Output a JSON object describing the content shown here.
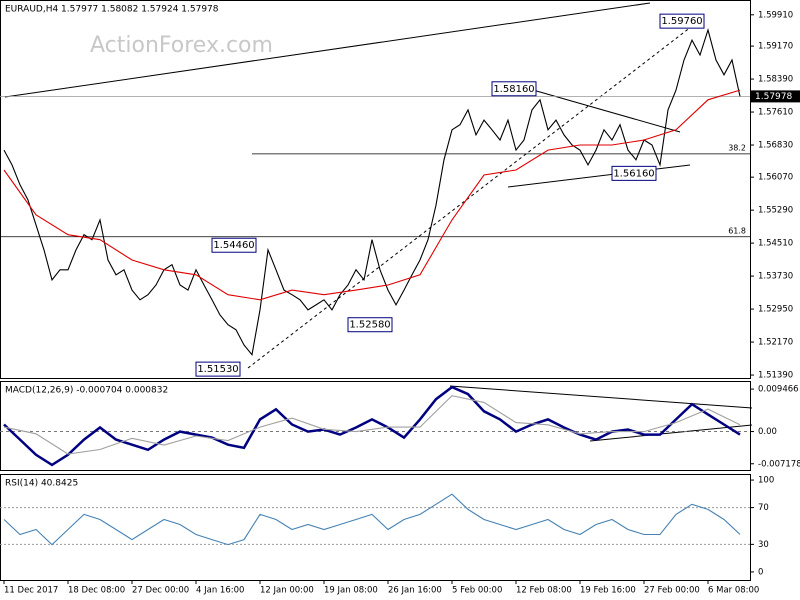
{
  "chart_data": [
    {
      "type": "line",
      "title": "EURAUD,H4  1.57977 1.58082 1.57924 1.57978",
      "watermark": "ActionForex.com",
      "xlim": [
        -0.5,
        93.25
      ],
      "ylim": [
        1.5132,
        1.6026
      ],
      "yticks": [
        {
          "value": 1.5991,
          "label": "1.59910"
        },
        {
          "value": 1.5917,
          "label": "1.59170"
        },
        {
          "value": 1.5839,
          "label": "1.58390"
        },
        {
          "value": 1.5761,
          "label": "1.57610"
        },
        {
          "value": 1.5683,
          "label": "1.56830"
        },
        {
          "value": 1.5607,
          "label": "1.56070"
        },
        {
          "value": 1.5529,
          "label": "1.55290"
        },
        {
          "value": 1.5451,
          "label": "1.54510"
        },
        {
          "value": 1.5373,
          "label": "1.53730"
        },
        {
          "value": 1.5295,
          "label": "1.52950"
        },
        {
          "value": 1.5217,
          "label": "1.52170"
        },
        {
          "value": 1.5139,
          "label": "1.51390"
        }
      ],
      "series": [
        {
          "color": "#000000",
          "x": [
            0,
            1,
            2,
            3,
            4,
            5,
            6,
            7,
            8,
            9,
            10,
            11,
            12,
            13,
            14,
            15,
            16,
            17,
            18,
            19,
            20,
            21,
            22,
            23,
            24,
            25,
            26,
            27,
            28,
            29,
            30,
            31,
            32,
            33,
            34,
            35,
            36,
            37,
            38,
            39,
            40,
            41,
            42,
            43,
            44,
            45,
            46,
            47,
            48,
            49,
            50,
            51,
            52,
            53,
            54,
            55,
            56,
            57,
            58,
            59,
            60,
            61,
            62,
            63,
            64,
            65,
            66,
            67,
            68,
            69,
            70,
            71,
            72,
            73,
            74,
            75,
            76,
            77,
            78,
            79,
            80,
            81,
            82,
            83,
            84,
            85,
            86,
            87,
            88,
            89,
            90,
            91,
            92
          ],
          "values": [
            1.5671,
            1.5636,
            1.5589,
            1.5553,
            1.5494,
            1.5435,
            1.5364,
            1.5388,
            1.5388,
            1.5435,
            1.5471,
            1.5459,
            1.5506,
            1.5411,
            1.5376,
            1.5388,
            1.534,
            1.5317,
            1.5329,
            1.5352,
            1.5388,
            1.54,
            1.5352,
            1.534,
            1.5388,
            1.5352,
            1.5317,
            1.5281,
            1.5258,
            1.5246,
            1.521,
            1.5187,
            1.5293,
            1.5435,
            1.5388,
            1.534,
            1.5329,
            1.5317,
            1.5293,
            1.5305,
            1.5317,
            1.5293,
            1.5329,
            1.5352,
            1.5388,
            1.5364,
            1.5459,
            1.5388,
            1.534,
            1.5305,
            1.534,
            1.5376,
            1.5411,
            1.5459,
            1.5541,
            1.5648,
            1.5719,
            1.5731,
            1.5766,
            1.5707,
            1.5742,
            1.5719,
            1.5695,
            1.5742,
            1.5671,
            1.5695,
            1.5766,
            1.579,
            1.5719,
            1.5742,
            1.5707,
            1.5683,
            1.5671,
            1.5636,
            1.5671,
            1.5719,
            1.5695,
            1.5731,
            1.5671,
            1.5648,
            1.5695,
            1.5683,
            1.5636,
            1.5766,
            1.5813,
            1.5884,
            1.5931,
            1.5896,
            1.5955,
            1.5884,
            1.5849,
            1.5884,
            1.5798
          ]
        },
        {
          "color": "#e00000",
          "x": [
            0,
            4,
            8,
            12,
            16,
            20,
            24,
            28,
            32,
            36,
            40,
            44,
            48,
            52,
            56,
            60,
            64,
            68,
            72,
            76,
            80,
            84,
            88,
            92
          ],
          "values": [
            1.5624,
            1.5518,
            1.5471,
            1.5459,
            1.5411,
            1.5388,
            1.5376,
            1.5329,
            1.5317,
            1.534,
            1.5329,
            1.534,
            1.5352,
            1.5376,
            1.5506,
            1.5612,
            1.5624,
            1.5671,
            1.5683,
            1.5683,
            1.5695,
            1.5719,
            1.579,
            1.5813
          ]
        }
      ],
      "annotations": [
        {
          "label": "1.51530",
          "value": 1.5153,
          "x": 24
        },
        {
          "label": "1.54460",
          "value": 1.5446,
          "x": 26
        },
        {
          "label": "1.52580",
          "value": 1.5258,
          "x": 43
        },
        {
          "label": "1.58160",
          "value": 1.5816,
          "x": 61
        },
        {
          "label": "1.56160",
          "value": 1.5616,
          "x": 76
        },
        {
          "label": "1.59760",
          "value": 1.5976,
          "x": 82
        }
      ],
      "fib": [
        {
          "label": "38.2",
          "value": 1.5662,
          "x": 31
        },
        {
          "label": "61.8",
          "value": 1.5466,
          "x": -0.5
        }
      ],
      "last": {
        "value": 1.5798,
        "label": "1.57978"
      }
    },
    {
      "type": "line",
      "title": "MACD(12,26,9) -0.000704 0.000832",
      "xlim": [
        -0.5,
        93.25
      ],
      "ylim": [
        -0.00857,
        0.01127
      ],
      "yticks": [
        0.009466,
        {
          "value": 0,
          "label": "0.00"
        },
        -0.007178
      ],
      "series": [
        {
          "color": "#000080",
          "x": [
            0,
            2,
            4,
            6,
            8,
            10,
            12,
            14,
            16,
            18,
            20,
            22,
            24,
            26,
            28,
            30,
            32,
            34,
            36,
            38,
            40,
            42,
            44,
            46,
            48,
            50,
            52,
            54,
            56,
            58,
            60,
            62,
            64,
            66,
            68,
            70,
            72,
            74,
            76,
            78,
            80,
            82,
            84,
            86,
            88,
            90,
            92
          ],
          "values": [
            0.00158,
            -0.0018,
            -0.00518,
            -0.00744,
            -0.00518,
            -0.0018,
            0.0009,
            -0.0018,
            -0.00293,
            -0.00406,
            -0.0018,
            0,
            -0.00068,
            -0.00135,
            -0.00293,
            -0.00361,
            0.0027,
            0.00496,
            0.00158,
            0,
            0.00045,
            -0.00068,
            0.0009,
            0.0027,
            0.0009,
            -0.00135,
            0.0027,
            0.00721,
            0.00992,
            0.00834,
            0.00451,
            0.0027,
            0,
            0.00158,
            0.0027,
            0.0009,
            -0.00068,
            -0.0018,
            0,
            0.00045,
            -0.00068,
            -0.00068,
            0.0027,
            0.00609,
            0.00383,
            0.00158,
            -0.00068
          ]
        },
        {
          "color": "#a0a0a0",
          "x": [
            0,
            4,
            8,
            12,
            16,
            20,
            24,
            28,
            32,
            36,
            40,
            44,
            48,
            52,
            56,
            60,
            64,
            68,
            72,
            76,
            80,
            84,
            88,
            92
          ],
          "values": [
            0.001,
            -0.0005,
            -0.005,
            -0.004,
            -0.0015,
            -0.003,
            -0.001,
            -0.002,
            0.001,
            0.003,
            0.0005,
            0,
            0.001,
            0.001,
            0.008,
            0.0065,
            0.002,
            0.0015,
            -0.0005,
            0,
            0,
            0.002,
            0.005,
            0.0015
          ]
        }
      ]
    },
    {
      "type": "line",
      "title": "RSI(14) 40.8425",
      "xlim": [
        -0.5,
        93.25
      ],
      "ylim": [
        -8.8,
        106.6
      ],
      "yticks": [
        100,
        70,
        30,
        0
      ],
      "levels": [
        70,
        30
      ],
      "xticks": [
        {
          "value": 0,
          "label": "11 Dec 2017"
        },
        {
          "value": 8,
          "label": "18 Dec 08:00"
        },
        {
          "value": 16,
          "label": "27 Dec 00:00"
        },
        {
          "value": 24,
          "label": "4 Jan 16:00"
        },
        {
          "value": 32,
          "label": "12 Jan 00:00"
        },
        {
          "value": 40,
          "label": "19 Jan 08:00"
        },
        {
          "value": 48,
          "label": "26 Jan 16:00"
        },
        {
          "value": 56,
          "label": "5 Feb 00:00"
        },
        {
          "value": 64,
          "label": "12 Feb 08:00"
        },
        {
          "value": 72,
          "label": "19 Feb 16:00"
        },
        {
          "value": 80,
          "label": "27 Feb 00:00"
        },
        {
          "value": 88,
          "label": "6 Mar 08:00"
        }
      ],
      "series": [
        {
          "color": "#4682b4",
          "x": [
            0,
            2,
            4,
            6,
            8,
            10,
            12,
            14,
            16,
            18,
            20,
            22,
            24,
            26,
            28,
            30,
            32,
            34,
            36,
            38,
            40,
            42,
            44,
            46,
            48,
            50,
            52,
            54,
            56,
            58,
            60,
            62,
            64,
            66,
            68,
            70,
            72,
            74,
            76,
            78,
            80,
            82,
            84,
            86,
            88,
            90,
            92
          ],
          "values": [
            57.1,
            40.7,
            46.2,
            29.7,
            46.2,
            62.6,
            57.1,
            46.2,
            35.2,
            46.2,
            57.1,
            51.6,
            40.7,
            35.2,
            29.7,
            35.2,
            62.6,
            57.1,
            46.2,
            51.6,
            46.2,
            51.6,
            57.1,
            62.6,
            46.2,
            57.1,
            62.6,
            73.6,
            84.6,
            68.1,
            57.1,
            51.6,
            46.2,
            51.6,
            57.1,
            46.2,
            40.7,
            51.6,
            57.1,
            46.2,
            40.7,
            40.7,
            62.6,
            73.6,
            68.1,
            57.1,
            40.8
          ]
        }
      ]
    }
  ]
}
